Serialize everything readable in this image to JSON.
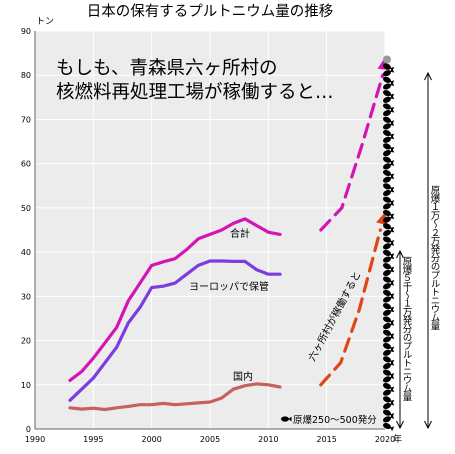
{
  "chart_data": {
    "type": "line",
    "title": "日本の保有するプルトニウム量の推移",
    "ylabel": "トン",
    "xlabel": "年",
    "xlim": [
      1990,
      2020
    ],
    "ylim": [
      0,
      90
    ],
    "x_ticks": [
      "1990",
      "1995",
      "2000",
      "2005",
      "2010",
      "2015",
      "2020"
    ],
    "y_ticks": [
      "0",
      "10",
      "20",
      "30",
      "40",
      "50",
      "60",
      "70",
      "80",
      "90"
    ],
    "grid": true,
    "plot_background": "#ececec",
    "headline": [
      "もしも、青森県六ヶ所村の",
      "核燃料再処理工場が稼働すると…"
    ],
    "series": [
      {
        "name": "合計",
        "color": "#d414b4",
        "x": [
          1993,
          1994,
          1995,
          1996,
          1997,
          1998,
          1999,
          2000,
          2001,
          2002,
          2003,
          2004,
          2005,
          2006,
          2007,
          2008,
          2009,
          2010,
          2011
        ],
        "y": [
          11,
          13,
          16,
          19.5,
          23,
          29,
          33,
          37,
          37.8,
          38.5,
          40.6,
          43,
          44,
          45,
          46.5,
          47.5,
          46,
          44.5,
          44
        ]
      },
      {
        "name": "ヨーロッパで保管",
        "color": "#7a3de0",
        "x": [
          1993,
          1994,
          1995,
          1996,
          1997,
          1998,
          1999,
          2000,
          2001,
          2002,
          2003,
          2004,
          2005,
          2006,
          2007,
          2008,
          2009,
          2010,
          2011
        ],
        "y": [
          6.5,
          9,
          11.5,
          15,
          18.5,
          24,
          27.5,
          32,
          32.3,
          33,
          35,
          37,
          38,
          38,
          37.9,
          37.9,
          36,
          35,
          35
        ]
      },
      {
        "name": "国内",
        "color": "#c96060",
        "x": [
          1993,
          1994,
          1995,
          1996,
          1997,
          1998,
          1999,
          2000,
          2001,
          2002,
          2003,
          2004,
          2005,
          2006,
          2007,
          2008,
          2009,
          2010,
          2011
        ],
        "y": [
          4.8,
          4.5,
          4.7,
          4.4,
          4.8,
          5.1,
          5.5,
          5.5,
          5.8,
          5.5,
          5.7,
          5.9,
          6.1,
          7,
          9,
          9.8,
          10.2,
          10,
          9.5
        ]
      }
    ],
    "projections": [
      {
        "color": "#d414b4",
        "x": [
          2014.5,
          2016.3,
          2018,
          2019.8,
          2020
        ],
        "y": [
          45,
          50,
          64,
          80,
          84
        ]
      },
      {
        "color": "#e04515",
        "x": [
          2014.5,
          2016.2,
          2017.8,
          2019.6,
          2020
        ],
        "y": [
          10,
          15,
          27,
          45,
          49
        ]
      }
    ],
    "projection_label": "六ヶ所村が稼働すると",
    "end_marker_color": "#999999",
    "bombs_scale_label": "原爆250〜500発分",
    "bracket_large_label": "原爆１万〜２万発分のプルトニウム量",
    "bracket_small_label": "原爆５千〜１万発分のプルトニウム量"
  }
}
